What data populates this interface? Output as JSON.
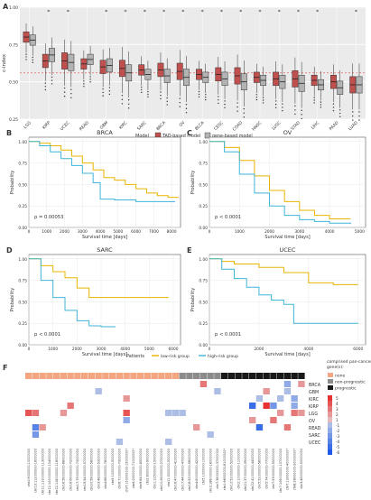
{
  "chart_data": [
    {
      "type": "box",
      "panel": "A",
      "ylabel": "c-index",
      "ylim": [
        0.25,
        1.0
      ],
      "yticks": [
        "0.25",
        "0.50",
        "0.75",
        "1.00"
      ],
      "reference_line": 0.56,
      "categories": [
        "LGG",
        "KIRP",
        "UCEC",
        "READ",
        "GBM",
        "KIRC",
        "SARC",
        "BRCA",
        "OV",
        "BLCA",
        "CESC",
        "COAD",
        "HNSC",
        "LUSC",
        "STAD",
        "LIHC",
        "PAAD",
        "LUAD"
      ],
      "significance_marks": [
        "KIRP",
        "UCEC",
        "GBM",
        "KIRC",
        "SARC",
        "BRCA",
        "OV",
        "BLCA",
        "CESC",
        "COAD",
        "HNSC",
        "LUSC",
        "STAD",
        "LIHC",
        "LUAD"
      ],
      "legend_title": "Model",
      "series": [
        {
          "name": "TAD-based model",
          "color": "#c0504d",
          "medians": [
            0.8,
            0.64,
            0.64,
            0.62,
            0.6,
            0.59,
            0.58,
            0.58,
            0.57,
            0.55,
            0.55,
            0.54,
            0.53,
            0.52,
            0.52,
            0.51,
            0.5,
            0.48
          ]
        },
        {
          "name": "gene-based model",
          "color": "#b3b3b3",
          "medians": [
            0.78,
            0.68,
            0.63,
            0.65,
            0.61,
            0.56,
            0.55,
            0.54,
            0.53,
            0.53,
            0.52,
            0.5,
            0.51,
            0.5,
            0.49,
            0.48,
            0.46,
            0.48
          ]
        }
      ]
    },
    {
      "type": "line",
      "panel": "B",
      "title": "BRCA",
      "xlabel": "Survival time [days]",
      "ylabel": "Probability",
      "xlim": [
        0,
        8500
      ],
      "ylim": [
        0,
        1.05
      ],
      "xticks": [
        "0",
        "1000",
        "2000",
        "3000",
        "4000",
        "5000",
        "6000",
        "7000",
        "8000"
      ],
      "yticks": [
        "0.00",
        "0.25",
        "0.50",
        "0.75",
        "1.00"
      ],
      "annotation": "p = 0.00053",
      "series": [
        {
          "name": "low-risk group",
          "color": "#e8b400",
          "x": [
            0,
            600,
            1200,
            1800,
            2400,
            3000,
            3600,
            4200,
            4800,
            5400,
            6000,
            6600,
            7200,
            7800,
            8400
          ],
          "y": [
            1.0,
            0.98,
            0.95,
            0.9,
            0.83,
            0.75,
            0.67,
            0.58,
            0.55,
            0.5,
            0.45,
            0.4,
            0.37,
            0.35,
            0.35
          ]
        },
        {
          "name": "high-risk group",
          "color": "#3fb5d9",
          "x": [
            0,
            600,
            1200,
            1800,
            2400,
            3000,
            3600,
            4000,
            4800,
            6000,
            7000,
            8200
          ],
          "y": [
            1.0,
            0.95,
            0.88,
            0.8,
            0.72,
            0.63,
            0.52,
            0.33,
            0.32,
            0.3,
            0.3,
            0.3
          ]
        }
      ]
    },
    {
      "type": "line",
      "panel": "C",
      "title": "OV",
      "xlabel": "Survival time [days]",
      "ylabel": "Probability",
      "xlim": [
        0,
        5200
      ],
      "ylim": [
        0,
        1.05
      ],
      "xticks": [
        "0",
        "1000",
        "2000",
        "3000",
        "4000",
        "5000"
      ],
      "yticks": [
        "0.00",
        "0.25",
        "0.50",
        "0.75",
        "1.00"
      ],
      "annotation": "p < 0.0001",
      "series": [
        {
          "name": "low-risk group",
          "color": "#e8b400",
          "x": [
            0,
            500,
            1000,
            1500,
            2000,
            2500,
            3000,
            3500,
            4000,
            4700
          ],
          "y": [
            1.0,
            0.93,
            0.78,
            0.6,
            0.43,
            0.3,
            0.2,
            0.14,
            0.1,
            0.1
          ]
        },
        {
          "name": "high-risk group",
          "color": "#3fb5d9",
          "x": [
            0,
            500,
            1000,
            1500,
            2000,
            2500,
            3000,
            3500,
            4000,
            4700
          ],
          "y": [
            1.0,
            0.88,
            0.62,
            0.4,
            0.25,
            0.14,
            0.09,
            0.07,
            0.05,
            0.04
          ]
        }
      ]
    },
    {
      "type": "line",
      "panel": "D",
      "title": "SARC",
      "xlabel": "Survival time [days]",
      "ylabel": "Probability",
      "xlim": [
        0,
        6300
      ],
      "ylim": [
        0,
        1.05
      ],
      "xticks": [
        "0",
        "1000",
        "2000",
        "3000",
        "4000",
        "5000",
        "6000"
      ],
      "yticks": [
        "0.00",
        "0.25",
        "0.50",
        "0.75",
        "1.00"
      ],
      "annotation": "p < 0.0001",
      "series": [
        {
          "name": "low-risk group",
          "color": "#e8b400",
          "x": [
            0,
            500,
            1000,
            1500,
            2000,
            2500,
            3000,
            4000,
            5000,
            5800
          ],
          "y": [
            1.0,
            0.92,
            0.85,
            0.78,
            0.66,
            0.55,
            0.55,
            0.55,
            0.55,
            0.55
          ]
        },
        {
          "name": "high-risk group",
          "color": "#3fb5d9",
          "x": [
            0,
            500,
            1000,
            1500,
            2000,
            2500,
            3000,
            3600
          ],
          "y": [
            1.0,
            0.75,
            0.55,
            0.4,
            0.28,
            0.22,
            0.21,
            0.21
          ]
        }
      ]
    },
    {
      "type": "line",
      "panel": "E",
      "title": "UCEC",
      "xlabel": "Survival time [days]",
      "ylabel": "Probability",
      "xlim": [
        0,
        6300
      ],
      "ylim": [
        0,
        1.05
      ],
      "xticks": [
        "0",
        "2000",
        "4000",
        "6000"
      ],
      "yticks": [
        "0.00",
        "0.25",
        "0.50",
        "0.75",
        "1.00"
      ],
      "annotation": "p < 0.0001",
      "series": [
        {
          "name": "low-risk group",
          "color": "#e8b400",
          "x": [
            0,
            500,
            1000,
            2000,
            3000,
            4000,
            5000,
            6000
          ],
          "y": [
            1.0,
            0.97,
            0.94,
            0.9,
            0.84,
            0.72,
            0.7,
            0.7
          ]
        },
        {
          "name": "high-risk group",
          "color": "#3fb5d9",
          "x": [
            0,
            500,
            1000,
            1500,
            2000,
            2500,
            3000,
            3400,
            4500,
            6000
          ],
          "y": [
            1.0,
            0.88,
            0.77,
            0.67,
            0.58,
            0.52,
            0.47,
            0.25,
            0.25,
            0.25
          ]
        }
      ]
    },
    {
      "type": "heatmap",
      "panel": "F",
      "annotation_track": "Patients",
      "legend_title": "comprised pan-cancer gene(s):",
      "legend_items": [
        {
          "label": "none",
          "color": "#f4a582"
        },
        {
          "label": "non-prognostic",
          "color": "#8c8c8c"
        },
        {
          "label": "prognostic",
          "color": "#1a1a1a"
        }
      ],
      "colorbar_ticks": [
        "5",
        "4",
        "3",
        "2",
        "1",
        "-1",
        "-2",
        "-3",
        "-4",
        "-5",
        "-6"
      ],
      "rows": [
        "BRCA",
        "GBM",
        "KIRC",
        "KIRP",
        "LGG",
        "OV",
        "READ",
        "SARC",
        "UCEC"
      ],
      "columns": [
        "chr1:9000000-10000000",
        "chr13:112000000-16000000",
        "chr11:110000000-113000000",
        "chr12:100000000-104000000",
        "chr12:118000000-118000000",
        "chr16:58000000-88000000",
        "chr16:69000000-72000000",
        "chr17:79000000-73000000",
        "chr19:54000000-57000000",
        "chr20:58000000-58000000",
        "chr3:48000000-53000000",
        "chr4:88000000-78000000",
        "chr5:1000000-5000000",
        "chr6:71000000-73000000",
        "chr7:150000000-15000000*",
        "chr8:2000000-71000000*",
        "chr9:84000000-85000000",
        "chr2:8000000-9000000",
        "chr1:12500000-15000000",
        "chr10:26000000-27000000",
        "chr11:3000000-5000000",
        "chr16:47000000-41000000",
        "chr17:44000000-47000000",
        "chr18:52000000-58000000",
        "chr4:60000000-42000000",
        "chr5:1000000-1000000",
        "chr3:188000000-180000000",
        "chr7:38000000-37000000",
        "chr1:66000000-81000000*",
        "chr10:52000000-52000000",
        "chr2:10000000-11000000",
        "chr21:37000000-39000000",
        "chr22:41000000-44000000",
        "chr5:52000000-58000000",
        "chr5:74000000-77000000",
        "chr7:53000000-55000000",
        "chr7:106000000-107000000",
        "chr7:13000000-40000000*",
        "chr8:28000000-30000000*",
        "chr3:46000000-50000000"
      ],
      "column_gene_status": [
        "none",
        "none",
        "none",
        "none",
        "none",
        "none",
        "none",
        "none",
        "none",
        "none",
        "none",
        "none",
        "none",
        "none",
        "none",
        "none",
        "none",
        "none",
        "none",
        "none",
        "none",
        "none",
        "non-prognostic",
        "non-prognostic",
        "non-prognostic",
        "non-prognostic",
        "non-prognostic",
        "non-prognostic",
        "prognostic",
        "prognostic",
        "prognostic",
        "prognostic",
        "prognostic",
        "prognostic",
        "prognostic",
        "prognostic",
        "prognostic",
        "prognostic",
        "prognostic",
        "prognostic"
      ],
      "cells": [
        {
          "row": "BRCA",
          "col": 25,
          "v": 3
        },
        {
          "row": "BRCA",
          "col": 37,
          "v": -2
        },
        {
          "row": "BRCA",
          "col": 39,
          "v": 2
        },
        {
          "row": "GBM",
          "col": 10,
          "v": -1
        },
        {
          "row": "GBM",
          "col": 27,
          "v": -1
        },
        {
          "row": "GBM",
          "col": 34,
          "v": 2
        },
        {
          "row": "GBM",
          "col": 37,
          "v": -1
        },
        {
          "row": "KIRC",
          "col": 14,
          "v": 2
        },
        {
          "row": "KIRC",
          "col": 33,
          "v": -1
        },
        {
          "row": "KIRC",
          "col": 36,
          "v": -1
        },
        {
          "row": "KIRC",
          "col": 38,
          "v": -2
        },
        {
          "row": "KIRP",
          "col": 6,
          "v": 3
        },
        {
          "row": "KIRP",
          "col": 32,
          "v": -5
        },
        {
          "row": "KIRP",
          "col": 34,
          "v": 5
        },
        {
          "row": "KIRP",
          "col": 35,
          "v": -3
        },
        {
          "row": "KIRP",
          "col": 38,
          "v": -2
        },
        {
          "row": "LGG",
          "col": 0,
          "v": 4
        },
        {
          "row": "LGG",
          "col": 1,
          "v": 3
        },
        {
          "row": "LGG",
          "col": 5,
          "v": 2
        },
        {
          "row": "LGG",
          "col": 14,
          "v": 4
        },
        {
          "row": "LGG",
          "col": 20,
          "v": -1
        },
        {
          "row": "LGG",
          "col": 21,
          "v": -1
        },
        {
          "row": "LGG",
          "col": 22,
          "v": -1
        },
        {
          "row": "LGG",
          "col": 36,
          "v": 2
        },
        {
          "row": "LGG",
          "col": 38,
          "v": 3
        },
        {
          "row": "LGG",
          "col": 39,
          "v": 2
        },
        {
          "row": "OV",
          "col": 14,
          "v": -2
        },
        {
          "row": "OV",
          "col": 32,
          "v": 2
        },
        {
          "row": "OV",
          "col": 35,
          "v": 3
        },
        {
          "row": "READ",
          "col": 1,
          "v": -4
        },
        {
          "row": "READ",
          "col": 2,
          "v": 2
        },
        {
          "row": "READ",
          "col": 24,
          "v": 2
        },
        {
          "row": "READ",
          "col": 33,
          "v": -5
        },
        {
          "row": "READ",
          "col": 37,
          "v": 3
        },
        {
          "row": "SARC",
          "col": 1,
          "v": -3
        },
        {
          "row": "SARC",
          "col": 26,
          "v": -1
        },
        {
          "row": "UCEC",
          "col": 13,
          "v": -1
        },
        {
          "row": "UCEC",
          "col": 20,
          "v": -1
        }
      ]
    }
  ],
  "shared_legend": {
    "title": "Patients",
    "items": [
      {
        "name": "low-risk group",
        "color": "#e8b400"
      },
      {
        "name": "high-risk group",
        "color": "#3fb5d9"
      }
    ]
  }
}
